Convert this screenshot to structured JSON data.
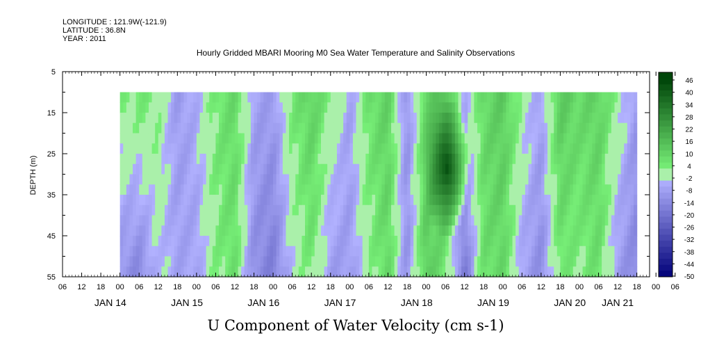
{
  "header": {
    "longitude": "LONGITUDE : 121.9W(-121.9)",
    "latitude": "LATITUDE : 36.8N",
    "year": "YEAR : 2011"
  },
  "chart_data": {
    "type": "heatmap",
    "title": "Hourly Gridded MBARI Mooring M0 Sea Water Temperature and Salinity Observations",
    "subtitle": "U Component of Water Velocity (cm s-1)",
    "ylabel": "DEPTH (m)",
    "ylim": [
      55,
      5
    ],
    "y_ticks": [
      "5",
      "15",
      "25",
      "35",
      "45",
      "55"
    ],
    "x_hour_labels": [
      "06",
      "12",
      "18",
      "00",
      "06",
      "12",
      "18",
      "00",
      "06",
      "12",
      "18",
      "00",
      "06",
      "12",
      "18",
      "00",
      "06",
      "12",
      "18",
      "00",
      "06",
      "12",
      "18",
      "00",
      "06",
      "12",
      "18",
      "00",
      "06",
      "12",
      "18",
      "00",
      "06"
    ],
    "x_day_labels": [
      "JAN 14",
      "JAN 15",
      "JAN 16",
      "JAN 17",
      "JAN 18",
      "JAN 19",
      "JAN 20",
      "JAN 21"
    ],
    "data_depth_range": [
      10,
      55
    ],
    "data_time_range_hours_after_jan14_00": [
      12,
      174
    ],
    "colorbar": {
      "labels": [
        "46",
        "40",
        "34",
        "28",
        "22",
        "16",
        "10",
        "4",
        "-2",
        "-8",
        "-14",
        "-20",
        "-26",
        "-32",
        "-38",
        "-44",
        "-50"
      ],
      "range": [
        -50,
        52
      ]
    },
    "profile_hours": [
      12,
      18,
      24,
      30,
      36,
      42,
      48,
      54,
      60,
      66,
      72,
      78,
      84,
      90,
      96,
      102,
      108,
      114,
      120,
      126,
      132,
      138,
      144,
      150,
      156,
      162,
      168,
      174
    ],
    "profile_shallow": [
      4,
      6,
      4,
      -8,
      -4,
      6,
      10,
      -6,
      -8,
      6,
      12,
      4,
      -6,
      8,
      12,
      -10,
      12,
      16,
      -4,
      10,
      14,
      2,
      -6,
      14,
      10,
      12,
      2,
      -8
    ],
    "profile_deep": [
      -10,
      -14,
      -2,
      -6,
      -6,
      4,
      8,
      -12,
      -16,
      -2,
      6,
      -8,
      -8,
      2,
      10,
      -10,
      14,
      6,
      -18,
      8,
      10,
      -6,
      -12,
      6,
      4,
      8,
      -8,
      -14
    ],
    "feature": {
      "label": "",
      "hour": 114,
      "depth": 27,
      "value": 46
    }
  }
}
